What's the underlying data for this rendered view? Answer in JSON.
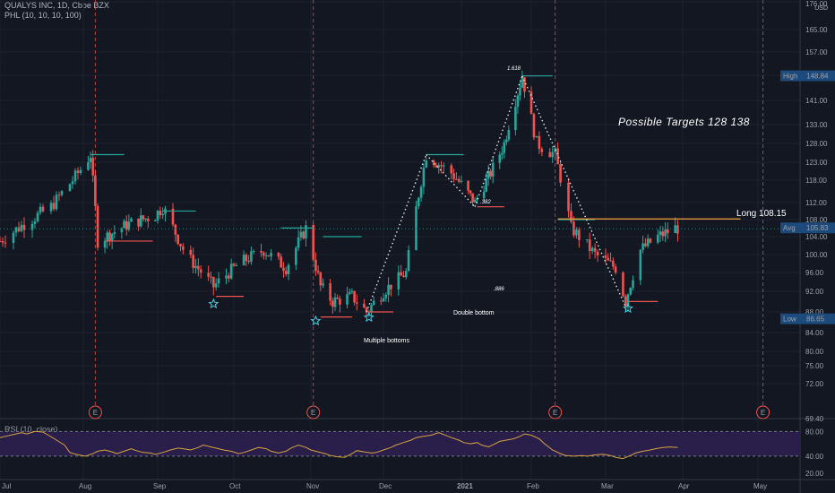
{
  "header": {
    "ticker": "QUALYS INC, 1D, Cboe BZX",
    "indicator": "PHL (10, 10, 10, 100)",
    "currency": "USD"
  },
  "rsi": {
    "label": "RSI (10, close)",
    "levels": [
      80,
      40
    ],
    "ticks": [
      "80.00",
      "40.00",
      "20.00"
    ]
  },
  "price_axis": {
    "ticks": [
      "176.00",
      "165.00",
      "157.00",
      "149.00",
      "141.00",
      "133.00",
      "128.00",
      "123.00",
      "118.00",
      "112.00",
      "108.00",
      "104.00",
      "100.00",
      "96.00",
      "92.00",
      "88.00",
      "84.00",
      "80.00",
      "75.00",
      "72.00",
      "69.40"
    ],
    "high_label": "High",
    "high_value": "148.84",
    "avg_label": "Avg",
    "avg_value": "105.83",
    "low_label": "Low",
    "low_value": "86.65"
  },
  "time_axis": [
    "Jul",
    "Aug",
    "Sep",
    "Oct",
    "Nov",
    "Dec",
    "2021",
    "Feb",
    "Mar",
    "Apr",
    "May"
  ],
  "earnings_marker": "E",
  "annotations": {
    "targets": "Possible Targets  128  138",
    "long": "Long 108.15",
    "fib_1618": "1.618",
    "fib_382": ".382",
    "fib_886": ".886",
    "double_bottom": "Double bottom",
    "multiple_bottoms": "Multiple bottoms"
  },
  "colors": {
    "background": "#131722",
    "up": "#26a69a",
    "down": "#ef5350",
    "rsi_line": "#d4a342",
    "rsi_band": "#2a1e4a",
    "long_line": "#f7a23b",
    "earnings": "#ef5350",
    "stars": "#3fd1e0"
  },
  "chart_data": {
    "type": "candlestick",
    "title": "QUALYS INC, 1D, Cboe BZX",
    "x_range": [
      "2020-07-01",
      "2021-05-10"
    ],
    "ylim": [
      69.4,
      176
    ],
    "log_scale": true,
    "high": 148.84,
    "avg": 105.83,
    "low": 86.65,
    "long_entry": 108.15,
    "targets": [
      128,
      138
    ],
    "earnings_dates": [
      "2020-08-06",
      "2020-11-02",
      "2021-02-10",
      "2021-05-03"
    ],
    "swing_points": [
      {
        "date": "2020-11-24",
        "price": 88.0
      },
      {
        "date": "2020-12-18",
        "price": 125.0
      },
      {
        "date": "2021-01-07",
        "price": 111.0
      },
      {
        "date": "2021-01-28",
        "price": 148.8
      },
      {
        "date": "2021-03-09",
        "price": 89.0
      }
    ],
    "rsi_series": [
      70,
      72,
      75,
      78,
      76,
      80,
      79,
      74,
      66,
      58,
      46,
      42,
      40,
      44,
      48,
      50,
      47,
      44,
      48,
      52,
      49,
      46,
      45,
      43,
      46,
      50,
      53,
      52,
      50,
      54,
      58,
      55,
      52,
      50,
      48,
      44,
      46,
      50,
      54,
      52,
      48,
      45,
      48,
      53,
      58,
      54,
      50,
      47,
      44,
      41,
      39,
      38,
      44,
      49,
      47,
      45,
      46,
      50,
      54,
      58,
      62,
      66,
      70,
      72,
      74,
      78,
      75,
      70,
      66,
      62,
      60,
      62,
      58,
      55,
      60,
      64,
      66,
      68,
      72,
      76,
      74,
      68,
      60,
      50,
      44,
      41,
      40,
      41,
      40,
      42,
      43,
      41,
      38,
      36,
      41,
      45,
      48,
      50,
      52,
      54,
      55,
      54
    ],
    "grid": true
  }
}
